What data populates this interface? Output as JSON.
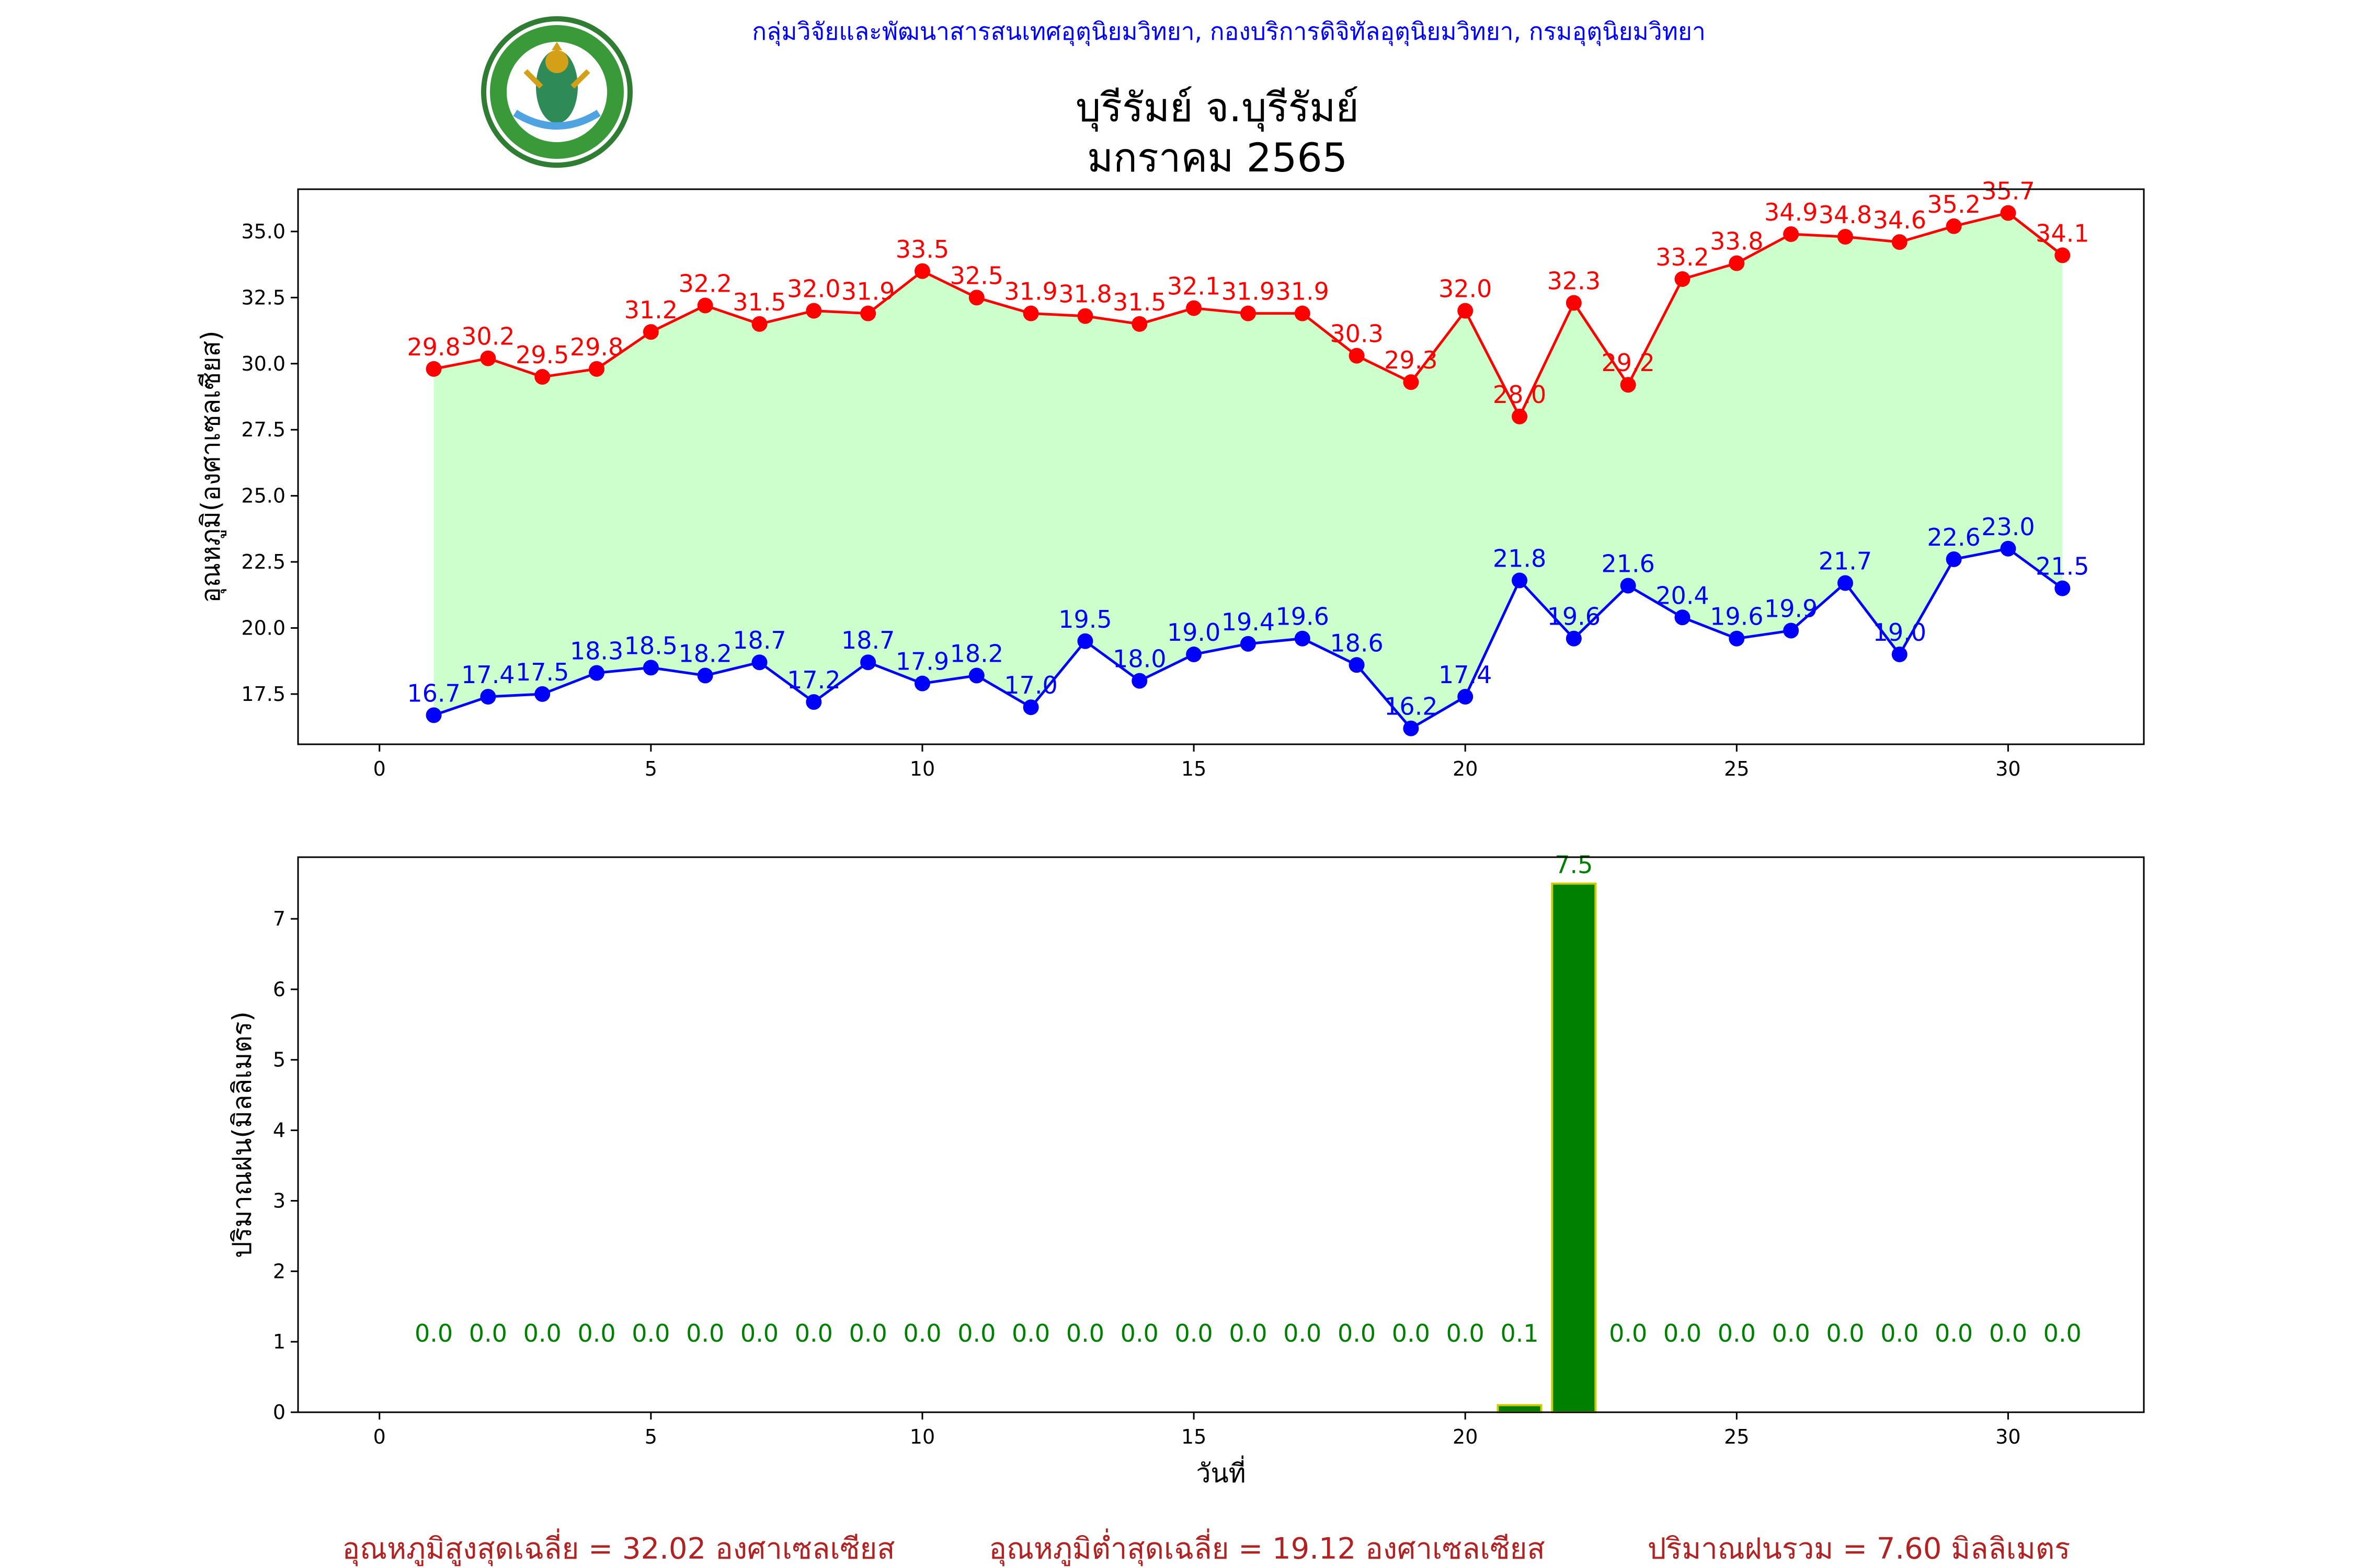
{
  "header": {
    "org_line": "กลุ่มวิจัยและพัฒนาสารสนเทศอุตุนิยมวิทยา, กองบริการดิจิทัลอุตุนิยมวิทยา, กรมอุตุนิยมวิทยา",
    "logo_icon": "meteorological-department-seal-icon",
    "title_line1": "บุรีรัมย์ จ.บุรีรัมย์",
    "title_line2": "มกราคม 2565"
  },
  "chart_data": [
    {
      "type": "line",
      "ylabel": "อุณหภูมิ(องศาเซลเซียส)",
      "xlim": [
        -1.5,
        32.5
      ],
      "ylim": [
        15.6,
        36.6
      ],
      "x_ticks": [
        0,
        5,
        10,
        15,
        20,
        25,
        30
      ],
      "y_ticks": [
        17.5,
        20.0,
        22.5,
        25.0,
        27.5,
        30.0,
        32.5,
        35.0
      ],
      "grid": false,
      "fill_between_color": "#ccffcc",
      "x": [
        1,
        2,
        3,
        4,
        5,
        6,
        7,
        8,
        9,
        10,
        11,
        12,
        13,
        14,
        15,
        16,
        17,
        18,
        19,
        20,
        21,
        22,
        23,
        24,
        25,
        26,
        27,
        28,
        29,
        30,
        31
      ],
      "series": [
        {
          "color": "#ff0000",
          "values": [
            29.8,
            30.2,
            29.5,
            29.8,
            31.2,
            32.2,
            31.5,
            32.0,
            31.9,
            33.5,
            32.5,
            31.9,
            31.8,
            31.5,
            32.1,
            31.9,
            31.9,
            30.3,
            29.3,
            32.0,
            28.0,
            32.3,
            29.2,
            33.2,
            33.8,
            34.9,
            34.8,
            34.6,
            35.2,
            35.7,
            34.1
          ],
          "labels": [
            "29.8",
            "30.2",
            "29.5",
            "29.8",
            "31.2",
            "32.2",
            "31.5",
            "32.0",
            "31.9",
            "33.5",
            "32.5",
            "31.9",
            "31.8",
            "31.5",
            "32.1",
            "31.9",
            "31.9",
            "30.3",
            "29.3",
            "32.0",
            "28.0",
            "32.3",
            "29.2",
            "33.2",
            "33.8",
            "34.9",
            "34.8",
            "34.6",
            "35.2",
            "35.7",
            "34.1"
          ]
        },
        {
          "color": "#0000ff",
          "values": [
            16.7,
            17.4,
            17.5,
            18.3,
            18.5,
            18.2,
            18.7,
            17.2,
            18.7,
            17.9,
            18.2,
            17.0,
            19.5,
            18.0,
            19.0,
            19.4,
            19.6,
            18.6,
            16.2,
            17.4,
            21.8,
            19.6,
            21.6,
            20.4,
            19.6,
            19.9,
            21.7,
            19.0,
            22.6,
            23.0,
            21.5
          ],
          "labels": [
            "16.7",
            "17.4",
            "17.5",
            "18.3",
            "18.5",
            "18.2",
            "18.7",
            "17.2",
            "18.7",
            "17.9",
            "18.2",
            "17.0",
            "19.5",
            "18.0",
            "19.0",
            "19.4",
            "19.6",
            "18.6",
            "16.2",
            "17.4",
            "21.8",
            "19.6",
            "21.6",
            "20.4",
            "19.6",
            "19.9",
            "21.7",
            "19.0",
            "22.6",
            "23.0",
            "21.5"
          ]
        }
      ]
    },
    {
      "type": "bar",
      "xlabel": "วันที่",
      "ylabel": "ปริมาณฝน(มิลลิเมตร)",
      "xlim": [
        -1.5,
        32.5
      ],
      "ylim": [
        0,
        7.875
      ],
      "x_ticks": [
        0,
        5,
        10,
        15,
        20,
        25,
        30
      ],
      "y_ticks": [
        0,
        1,
        2,
        3,
        4,
        5,
        6,
        7
      ],
      "grid": false,
      "bar_color": "#008000",
      "bar_edge_color": "#cccc00",
      "label_color": "#008000",
      "x": [
        1,
        2,
        3,
        4,
        5,
        6,
        7,
        8,
        9,
        10,
        11,
        12,
        13,
        14,
        15,
        16,
        17,
        18,
        19,
        20,
        21,
        22,
        23,
        24,
        25,
        26,
        27,
        28,
        29,
        30,
        31
      ],
      "values": [
        0,
        0,
        0,
        0,
        0,
        0,
        0,
        0,
        0,
        0,
        0,
        0,
        0,
        0,
        0,
        0,
        0,
        0,
        0,
        0,
        0.1,
        7.5,
        0,
        0,
        0,
        0,
        0,
        0,
        0,
        0,
        0
      ],
      "labels": [
        "0.0",
        "0.0",
        "0.0",
        "0.0",
        "0.0",
        "0.0",
        "0.0",
        "0.0",
        "0.0",
        "0.0",
        "0.0",
        "0.0",
        "0.0",
        "0.0",
        "0.0",
        "0.0",
        "0.0",
        "0.0",
        "0.0",
        "0.0",
        "0.1",
        "7.5",
        "0.0",
        "0.0",
        "0.0",
        "0.0",
        "0.0",
        "0.0",
        "0.0",
        "0.0",
        "0.0"
      ]
    }
  ],
  "footer": {
    "avg_max": "อุณหภูมิสูงสุดเฉลี่ย = 32.02 องศาเซลเซียส",
    "avg_min": "อุณหภูมิต่ำสุดเฉลี่ย = 19.12 องศาเซลเซียส",
    "total_rain": "ปริมาณฝนรวม = 7.60 มิลลิเมตร"
  }
}
